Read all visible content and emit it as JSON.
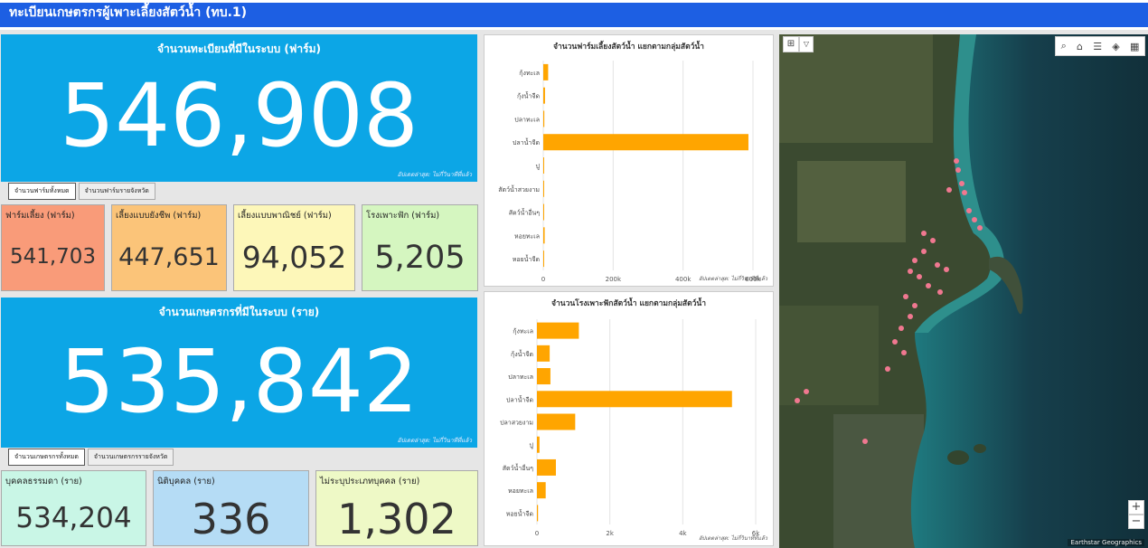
{
  "header": {
    "title": "ทะเบียนเกษตรกรผู้เพาะเลี้ยงสัตว์น้ำ (ทบ.1)"
  },
  "farm_panel": {
    "title": "จำนวนทะเบียนที่มีในระบบ (ฟาร์ม)",
    "value": "546,908",
    "updated": "อัปเดตล่าสุด: ไม่กี่วินาทีที่แล้ว",
    "tabs": [
      "จำนวนฟาร์มทั้งหมด",
      "จำนวนฟาร์มรายจังหวัด"
    ],
    "tiles": [
      {
        "label": "ฟาร์มเลี้ยง (ฟาร์ม)",
        "value": "541,703",
        "color": "#f99b79"
      },
      {
        "label": "เลี้ยงแบบยังชีพ (ฟาร์ม)",
        "value": "447,651",
        "color": "#fbc479"
      },
      {
        "label": "เลี้ยงแบบพาณิชย์ (ฟาร์ม)",
        "value": "94,052",
        "color": "#fdf7b9"
      },
      {
        "label": "โรงเพาะฟัก (ฟาร์ม)",
        "value": "5,205",
        "color": "#d5f6c0"
      }
    ]
  },
  "farmer_panel": {
    "title": "จำนวนเกษตรกรที่มีในระบบ (ราย)",
    "value": "535,842",
    "updated": "อัปเดตล่าสุด: ไม่กี่วินาทีที่แล้ว",
    "tabs": [
      "จำนวนเกษตรกรทั้งหมด",
      "จำนวนเกษตรกรรายจังหวัด"
    ],
    "tiles": [
      {
        "label": "บุคคลธรรมดา (ราย)",
        "value": "534,204",
        "color": "#c9f6e6"
      },
      {
        "label": "นิติบุคคล (ราย)",
        "value": "336",
        "color": "#b5dcf5"
      },
      {
        "label": "ไม่ระบุประเภทบุคคล (ราย)",
        "value": "1,302",
        "color": "#eef9c6"
      }
    ]
  },
  "chart_data": [
    {
      "type": "bar",
      "orientation": "horizontal",
      "title": "จำนวนฟาร์มเลี้ยงสัตว์น้ำ แยกตามกลุ่มสัตว์น้ำ",
      "categories": [
        "กุ้งทะเล",
        "กุ้งน้ำจืด",
        "ปลาทะเล",
        "ปลาน้ำจืด",
        "ปู",
        "สัตว์น้ำสวยงาม",
        "สัตว์น้ำอื่นๆ",
        "หอยทะเล",
        "หอยน้ำจืด"
      ],
      "values": [
        14000,
        5000,
        3000,
        587000,
        1500,
        1200,
        2000,
        4000,
        800
      ],
      "xlim": [
        0,
        600000
      ],
      "xticks": [
        "0",
        "200k",
        "400k",
        "600k"
      ],
      "bar_color": "#ffa500",
      "grid": true,
      "updated": "อัปเดตล่าสุด: ไม่กี่วินาทีที่แล้ว"
    },
    {
      "type": "bar",
      "orientation": "horizontal",
      "title": "จำนวนโรงเพาะฟักสัตว์น้ำ แยกตามกลุ่มสัตว์น้ำ",
      "categories": [
        "กุ้งทะเล",
        "กุ้งน้ำจืด",
        "ปลาทะเล",
        "ปลาน้ำจืด",
        "ปลาสวยงาม",
        "ปู",
        "สัตว์น้ำอื่นๆ",
        "หอยทะเล",
        "หอยน้ำจืด"
      ],
      "values": [
        1150,
        350,
        370,
        5350,
        1050,
        70,
        520,
        240,
        30
      ],
      "xlim": [
        0,
        6000
      ],
      "xticks": [
        "0",
        "2k",
        "4k",
        "6k"
      ],
      "bar_color": "#ffa500",
      "grid": true,
      "updated": "อัปเดตล่าสุด: ไม่กี่วินาทีที่แล้ว"
    }
  ],
  "map": {
    "attribution": "Earthstar Geographics",
    "tools": [
      "grid-select-icon",
      "dropdown-chevron-icon",
      "search-icon",
      "home-icon",
      "legend-icon",
      "layers-icon",
      "basemap-gallery-icon"
    ],
    "zoom_in": "+",
    "zoom_out": "−",
    "marker_color": "#f07890"
  }
}
